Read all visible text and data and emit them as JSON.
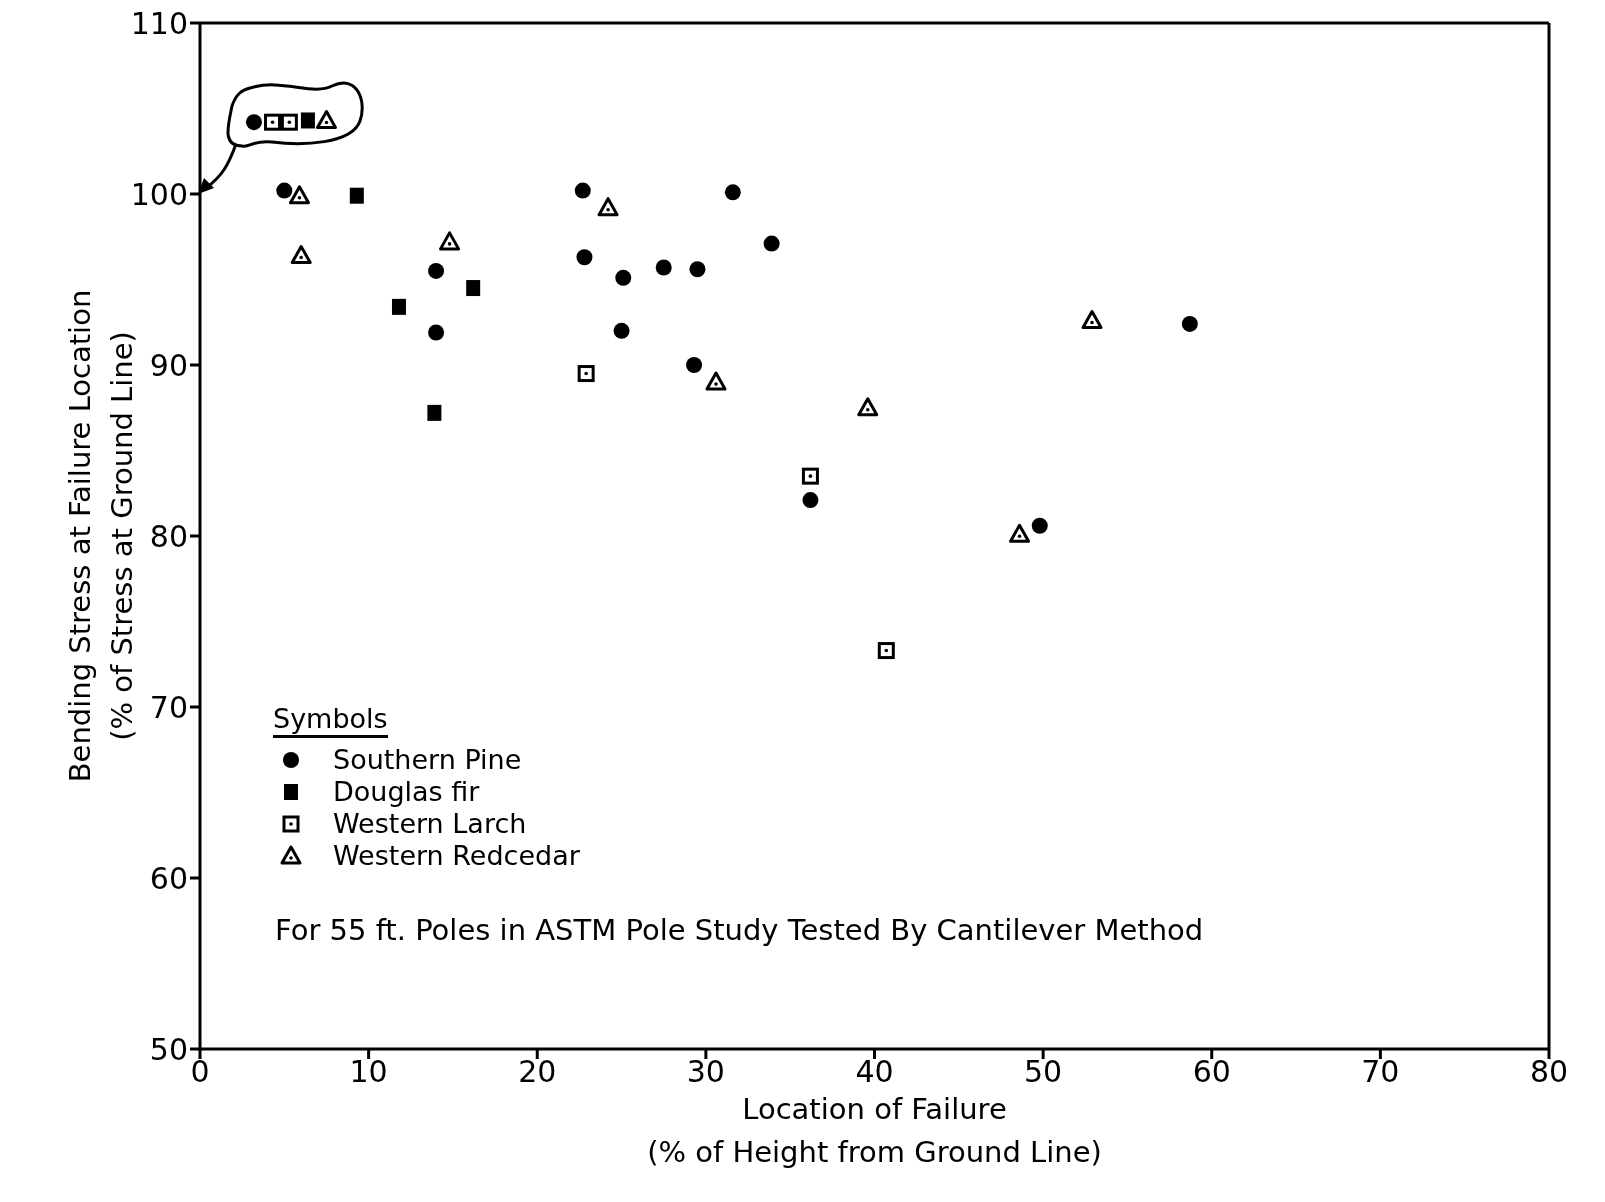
{
  "chart_data": {
    "type": "scatter",
    "xlabel": "Location of Failure\n(% of Height from Ground Line)",
    "ylabel": "Bending Stress at Failure Location\n(% of Stress at Ground Line)",
    "legend_title": "Symbols",
    "legend": "bottom left",
    "grid": false,
    "xlim": [
      0,
      80
    ],
    "xticks": [
      0,
      10,
      20,
      30,
      40,
      50,
      60,
      70,
      80
    ],
    "ylim": [
      50,
      110
    ],
    "yticks": [
      50,
      60,
      70,
      80,
      90,
      100,
      110
    ],
    "annotations": [
      "For 55 ft. Poles in ASTM Pole Study Tested By Cantilever Method"
    ],
    "series": [
      {
        "name": "Southern Pine",
        "color": "#000000",
        "marker": "circle",
        "x": [
          3.2,
          5.0,
          14.0,
          14.0,
          22.7,
          22.8,
          25.1,
          25.0,
          27.5,
          29.5,
          29.3,
          31.6,
          33.9,
          36.2,
          49.8,
          58.7
        ],
        "values": [
          104.2,
          100.2,
          95.5,
          91.9,
          100.2,
          96.3,
          95.1,
          92.0,
          95.7,
          95.6,
          90.0,
          100.1,
          97.1,
          82.1,
          80.6,
          92.4
        ]
      },
      {
        "name": "Douglas fir",
        "color": "#000000",
        "marker": "square",
        "x": [
          6.4,
          9.3,
          11.8,
          16.2,
          13.9
        ],
        "values": [
          104.3,
          99.9,
          93.4,
          94.5,
          87.2
        ]
      },
      {
        "name": "Western Larch",
        "color": "#000000",
        "marker": "square",
        "x": [
          4.3,
          5.3,
          22.9,
          36.2,
          40.7
        ],
        "values": [
          104.2,
          104.2,
          89.5,
          83.5,
          73.3
        ]
      },
      {
        "name": "Western Redcedar",
        "color": "#000000",
        "marker": "triangle",
        "x": [
          7.5,
          5.9,
          6.0,
          14.8,
          24.2,
          30.6,
          39.6,
          48.6,
          52.9
        ],
        "values": [
          104.3,
          99.9,
          96.4,
          97.2,
          99.2,
          89.0,
          87.5,
          80.1,
          92.6
        ]
      }
    ]
  }
}
